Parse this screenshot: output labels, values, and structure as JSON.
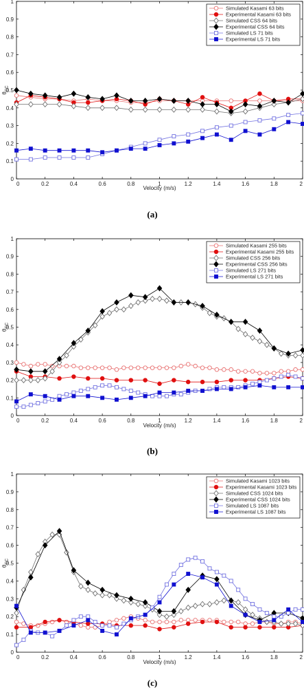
{
  "chart_data": [
    {
      "type": "line",
      "caption": "(a)",
      "xlabel": "Velocity (m/s)",
      "ylabel": "θ",
      "ylabel_sub": "CC",
      "xlim": [
        0,
        2
      ],
      "ylim": [
        0,
        1
      ],
      "xticks": [
        "0",
        "0.2",
        "0.4",
        "0.6",
        "0.8",
        "1",
        "1.2",
        "1.4",
        "1.6",
        "1.8",
        "2"
      ],
      "yticks": [
        "0",
        "0.1",
        "0.2",
        "0.3",
        "0.4",
        "0.5",
        "0.6",
        "0.7",
        "0.8",
        "0.9",
        "1"
      ],
      "legend_position": "top-right",
      "x": [
        0,
        0.1,
        0.2,
        0.3,
        0.4,
        0.5,
        0.6,
        0.7,
        0.8,
        0.9,
        1.0,
        1.1,
        1.2,
        1.3,
        1.4,
        1.5,
        1.6,
        1.7,
        1.8,
        1.9,
        2.0
      ],
      "series": [
        {
          "name": "Simulated Kasami 63 bits",
          "color": "#e87070",
          "marker": "circle-open",
          "values": [
            0.47,
            0.46,
            0.45,
            0.45,
            0.44,
            0.45,
            0.44,
            0.44,
            0.43,
            0.43,
            0.44,
            0.44,
            0.44,
            0.44,
            0.44,
            0.44,
            0.44,
            0.44,
            0.44,
            0.44,
            0.44
          ]
        },
        {
          "name": "Experimental Kasami 63 bits",
          "color": "#e01010",
          "marker": "circle",
          "values": [
            0.43,
            0.47,
            0.46,
            0.45,
            0.43,
            0.43,
            0.44,
            0.45,
            0.44,
            0.42,
            0.45,
            0.44,
            0.42,
            0.46,
            0.43,
            0.4,
            0.44,
            0.48,
            0.44,
            0.45,
            0.45
          ]
        },
        {
          "name": "Simulated CSS 64 bits",
          "color": "#707070",
          "marker": "diamond-open",
          "values": [
            0.42,
            0.42,
            0.42,
            0.42,
            0.41,
            0.4,
            0.4,
            0.4,
            0.39,
            0.39,
            0.39,
            0.39,
            0.39,
            0.39,
            0.38,
            0.37,
            0.38,
            0.4,
            0.42,
            0.43,
            0.45
          ]
        },
        {
          "name": "Experimental CSS 64 bits",
          "color": "#000000",
          "marker": "diamond",
          "values": [
            0.5,
            0.48,
            0.47,
            0.46,
            0.48,
            0.46,
            0.45,
            0.47,
            0.44,
            0.44,
            0.45,
            0.44,
            0.44,
            0.42,
            0.42,
            0.38,
            0.42,
            0.41,
            0.44,
            0.43,
            0.48
          ]
        },
        {
          "name": "Simulated LS 71 bits",
          "color": "#7070e0",
          "marker": "square-open",
          "values": [
            0.11,
            0.11,
            0.12,
            0.12,
            0.12,
            0.12,
            0.14,
            0.16,
            0.18,
            0.2,
            0.22,
            0.24,
            0.25,
            0.27,
            0.29,
            0.3,
            0.32,
            0.33,
            0.34,
            0.36,
            0.37
          ]
        },
        {
          "name": "Experimental LS 71 bits",
          "color": "#1010d0",
          "marker": "square",
          "values": [
            0.16,
            0.17,
            0.16,
            0.16,
            0.16,
            0.16,
            0.15,
            0.16,
            0.17,
            0.17,
            0.19,
            0.2,
            0.21,
            0.23,
            0.25,
            0.22,
            0.27,
            0.25,
            0.28,
            0.32,
            0.31
          ]
        }
      ]
    },
    {
      "type": "line",
      "caption": "(b)",
      "xlabel": "Velocity (m/s)",
      "ylabel": "θ",
      "ylabel_sub": "CC",
      "xlim": [
        0,
        2
      ],
      "ylim": [
        0,
        1
      ],
      "xticks": [
        "0",
        "0.2",
        "0.4",
        "0.6",
        "0.8",
        "1",
        "1.2",
        "1.4",
        "1.6",
        "1.8",
        "2"
      ],
      "yticks": [
        "0",
        "0.1",
        "0.2",
        "0.3",
        "0.4",
        "0.5",
        "0.6",
        "0.7",
        "0.8",
        "0.9",
        "1"
      ],
      "legend_position": "top-right",
      "x": [
        0,
        0.05,
        0.1,
        0.15,
        0.2,
        0.25,
        0.3,
        0.35,
        0.4,
        0.45,
        0.5,
        0.55,
        0.6,
        0.65,
        0.7,
        0.75,
        0.8,
        0.85,
        0.9,
        0.95,
        1.0,
        1.05,
        1.1,
        1.15,
        1.2,
        1.25,
        1.3,
        1.35,
        1.4,
        1.45,
        1.5,
        1.55,
        1.6,
        1.65,
        1.7,
        1.75,
        1.8,
        1.85,
        1.9,
        1.95,
        2.0
      ],
      "series": [
        {
          "name": "Simulated Kasami 255 bits",
          "color": "#e87070",
          "marker": "circle-open",
          "values": [
            0.3,
            0.29,
            0.28,
            0.29,
            0.29,
            0.28,
            0.28,
            0.28,
            0.28,
            0.27,
            0.27,
            0.27,
            0.27,
            0.27,
            0.26,
            0.27,
            0.27,
            0.27,
            0.27,
            0.27,
            0.27,
            0.27,
            0.27,
            0.28,
            0.29,
            0.28,
            0.27,
            0.27,
            0.26,
            0.26,
            0.26,
            0.25,
            0.25,
            0.25,
            0.24,
            0.24,
            0.24,
            0.25,
            0.25,
            0.26,
            0.26
          ]
        },
        {
          "name": "Experimental Kasami 255 bits",
          "color": "#e01010",
          "marker": "circle",
          "values": [
            0.25,
            null,
            0.22,
            null,
            0.22,
            null,
            0.21,
            null,
            0.22,
            null,
            0.21,
            null,
            0.21,
            null,
            0.2,
            null,
            0.2,
            null,
            0.2,
            null,
            0.18,
            null,
            0.2,
            null,
            0.19,
            null,
            0.19,
            null,
            0.19,
            null,
            0.2,
            null,
            0.2,
            null,
            0.2,
            null,
            0.21,
            null,
            0.22,
            null,
            0.21
          ]
        },
        {
          "name": "Simulated CSS 256 bits",
          "color": "#707070",
          "marker": "diamond-open",
          "values": [
            0.2,
            0.2,
            0.2,
            0.2,
            0.21,
            0.25,
            0.3,
            0.34,
            0.39,
            0.43,
            0.47,
            0.51,
            0.56,
            0.58,
            0.6,
            0.6,
            0.62,
            0.64,
            0.65,
            0.66,
            0.66,
            0.65,
            0.64,
            0.64,
            0.64,
            0.63,
            0.61,
            0.58,
            0.56,
            0.55,
            0.53,
            0.49,
            0.46,
            0.44,
            0.42,
            0.4,
            0.38,
            0.35,
            0.34,
            0.34,
            0.34
          ]
        },
        {
          "name": "Experimental CSS 256 bits",
          "color": "#000000",
          "marker": "diamond",
          "values": [
            0.26,
            null,
            0.25,
            null,
            0.25,
            null,
            0.32,
            null,
            0.41,
            null,
            0.48,
            null,
            0.59,
            null,
            0.64,
            null,
            0.68,
            null,
            0.67,
            null,
            0.72,
            null,
            0.64,
            null,
            0.64,
            null,
            0.62,
            null,
            0.57,
            null,
            0.53,
            null,
            0.53,
            null,
            0.48,
            null,
            0.38,
            null,
            0.35,
            null,
            0.37
          ]
        },
        {
          "name": "Simulated LS 271 bits",
          "color": "#7070e0",
          "marker": "square-open",
          "values": [
            0.05,
            0.05,
            0.06,
            0.07,
            0.08,
            0.09,
            0.11,
            0.12,
            0.13,
            0.14,
            0.15,
            0.16,
            0.17,
            0.17,
            0.16,
            0.15,
            0.14,
            0.13,
            0.12,
            0.11,
            0.11,
            0.11,
            0.12,
            0.12,
            0.13,
            0.14,
            0.14,
            0.15,
            0.16,
            0.16,
            0.16,
            0.16,
            0.17,
            0.18,
            0.19,
            0.2,
            0.21,
            0.22,
            0.23,
            0.22,
            0.21
          ]
        },
        {
          "name": "Experimental LS 271 bits",
          "color": "#1010d0",
          "marker": "square",
          "values": [
            0.08,
            null,
            0.12,
            null,
            0.11,
            null,
            0.09,
            null,
            0.11,
            null,
            0.11,
            null,
            0.1,
            null,
            0.09,
            null,
            0.1,
            null,
            0.11,
            null,
            0.13,
            null,
            0.13,
            null,
            0.14,
            null,
            0.14,
            null,
            0.15,
            null,
            0.15,
            null,
            0.16,
            null,
            0.17,
            null,
            0.16,
            null,
            0.16,
            null,
            0.16
          ]
        }
      ]
    },
    {
      "type": "line",
      "caption": "(c)",
      "xlabel": "Velocity (m/s)",
      "ylabel": "θ",
      "ylabel_sub": "CC",
      "xlim": [
        0,
        2
      ],
      "ylim": [
        0,
        1
      ],
      "xticks": [
        "0",
        "0.2",
        "0.4",
        "0.6",
        "0.8",
        "1",
        "1.2",
        "1.4",
        "1.6",
        "1.8",
        "2"
      ],
      "yticks": [
        "0",
        "0.1",
        "0.2",
        "0.3",
        "0.4",
        "0.5",
        "0.6",
        "0.7",
        "0.8",
        "0.9",
        "1"
      ],
      "legend_position": "top-right",
      "x": [
        0,
        0.05,
        0.1,
        0.15,
        0.2,
        0.25,
        0.3,
        0.35,
        0.4,
        0.45,
        0.5,
        0.55,
        0.6,
        0.65,
        0.7,
        0.75,
        0.8,
        0.85,
        0.9,
        0.95,
        1.0,
        1.05,
        1.1,
        1.15,
        1.2,
        1.25,
        1.3,
        1.35,
        1.4,
        1.45,
        1.5,
        1.55,
        1.6,
        1.65,
        1.7,
        1.75,
        1.8,
        1.85,
        1.9,
        1.95,
        2.0
      ],
      "series": [
        {
          "name": "Simulated Kasami 1023 bits",
          "color": "#e87070",
          "marker": "circle-open",
          "values": [
            0.17,
            0.16,
            0.15,
            0.15,
            0.16,
            0.17,
            0.18,
            0.17,
            0.16,
            0.15,
            0.14,
            0.14,
            0.15,
            0.17,
            0.18,
            0.19,
            0.2,
            0.19,
            0.18,
            0.17,
            0.17,
            0.17,
            0.17,
            0.18,
            0.18,
            0.18,
            0.18,
            0.18,
            0.18,
            0.17,
            0.17,
            0.17,
            0.16,
            0.16,
            0.17,
            0.17,
            0.16,
            0.16,
            0.17,
            0.17,
            0.16
          ]
        },
        {
          "name": "Experimental Kasami 1023 bits",
          "color": "#e01010",
          "marker": "circle",
          "values": [
            0.14,
            null,
            0.14,
            null,
            0.17,
            null,
            0.18,
            null,
            0.17,
            null,
            0.16,
            null,
            0.16,
            null,
            0.15,
            null,
            0.15,
            null,
            0.15,
            null,
            0.13,
            null,
            0.14,
            null,
            0.16,
            null,
            0.17,
            null,
            0.17,
            null,
            0.14,
            null,
            0.14,
            null,
            0.14,
            null,
            0.14,
            null,
            0.14,
            null,
            0.15
          ]
        },
        {
          "name": "Simulated CSS 1024 bits",
          "color": "#707070",
          "marker": "diamond-open",
          "values": [
            0.22,
            0.35,
            0.45,
            0.55,
            0.62,
            0.66,
            0.66,
            0.56,
            0.45,
            0.37,
            0.35,
            0.33,
            0.32,
            0.32,
            0.3,
            0.29,
            0.28,
            0.27,
            0.26,
            0.24,
            0.21,
            0.2,
            0.21,
            0.23,
            0.25,
            0.26,
            0.27,
            0.27,
            0.28,
            0.29,
            0.29,
            0.28,
            0.24,
            0.21,
            0.19,
            0.17,
            0.17,
            0.16,
            0.16,
            0.16,
            0.15
          ]
        },
        {
          "name": "Experimental CSS 1024 bits",
          "color": "#000000",
          "marker": "diamond",
          "values": [
            0.25,
            null,
            0.42,
            null,
            0.6,
            null,
            0.68,
            null,
            0.46,
            null,
            0.39,
            null,
            0.35,
            null,
            0.32,
            null,
            0.3,
            null,
            0.28,
            null,
            0.23,
            null,
            0.23,
            null,
            0.35,
            null,
            0.43,
            null,
            0.41,
            null,
            0.29,
            null,
            0.21,
            null,
            0.18,
            null,
            0.22,
            null,
            0.22,
            null,
            0.19
          ]
        },
        {
          "name": "Simulated LS 1087 bits",
          "color": "#7070e0",
          "marker": "square-open",
          "values": [
            0.04,
            0.07,
            0.12,
            0.11,
            0.11,
            0.09,
            0.12,
            0.15,
            0.18,
            0.2,
            0.2,
            0.17,
            0.15,
            0.15,
            0.14,
            0.16,
            0.18,
            0.2,
            0.21,
            0.25,
            0.31,
            0.38,
            0.44,
            0.49,
            0.52,
            0.53,
            0.51,
            0.47,
            0.45,
            0.43,
            0.4,
            0.35,
            0.3,
            0.27,
            0.24,
            0.22,
            0.2,
            0.2,
            0.22,
            0.24,
            0.24
          ]
        },
        {
          "name": "Experimental LS 1087 bits",
          "color": "#1010d0",
          "marker": "square",
          "values": [
            0.26,
            null,
            0.11,
            null,
            0.11,
            null,
            0.12,
            null,
            0.15,
            null,
            0.18,
            null,
            0.12,
            null,
            0.1,
            null,
            0.19,
            null,
            0.21,
            null,
            0.28,
            null,
            0.38,
            null,
            0.44,
            null,
            0.42,
            null,
            0.38,
            null,
            0.26,
            null,
            0.21,
            null,
            0.17,
            null,
            0.18,
            null,
            0.24,
            null,
            0.17
          ]
        }
      ]
    }
  ]
}
